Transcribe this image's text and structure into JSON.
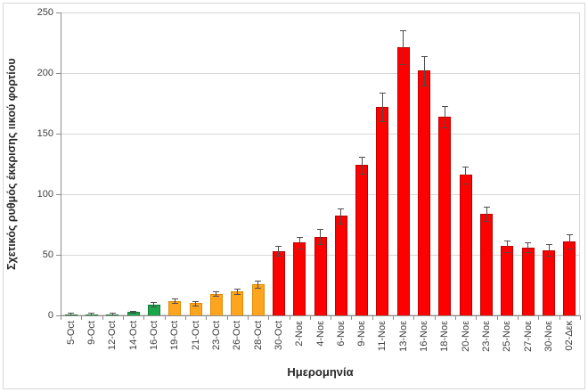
{
  "chart_data": {
    "type": "bar",
    "title": "",
    "xlabel": "Ημερομηνία",
    "ylabel": "Σχετικός ρυθμός έκκρισης ιικού φορτίου",
    "ylim": [
      0,
      250
    ],
    "ytick_step": 50,
    "grid": true,
    "legend": "none",
    "categories": [
      "5-Oct",
      "9-Oct",
      "12-Oct",
      "14-Oct",
      "16-Oct",
      "19-Oct",
      "21-Oct",
      "23-Oct",
      "26-Oct",
      "28-Oct",
      "30-Oct",
      "2-Νοε",
      "4-Νοε",
      "6-Νοε",
      "9-Νοε",
      "11-Νοε",
      "13-Νοε",
      "16-Νοε",
      "18-Νοε",
      "20-Νοε",
      "23-Νοε",
      "25-Νοε",
      "27-Νοε",
      "30-Νοε",
      "02-Δεκ"
    ],
    "values": [
      1,
      1,
      1,
      3,
      9,
      12,
      10,
      18,
      20,
      26,
      53,
      60,
      65,
      82,
      124,
      172,
      221,
      202,
      164,
      116,
      84,
      57,
      56,
      54,
      61
    ],
    "errors": [
      1,
      1,
      1,
      1,
      2,
      2,
      2,
      2,
      2,
      3,
      4,
      5,
      6,
      6,
      7,
      12,
      14,
      12,
      9,
      7,
      6,
      5,
      4,
      5,
      6
    ],
    "colors": [
      "green",
      "green",
      "green",
      "green",
      "green",
      "orange",
      "orange",
      "orange",
      "orange",
      "orange",
      "red",
      "red",
      "red",
      "red",
      "red",
      "red",
      "red",
      "red",
      "red",
      "red",
      "red",
      "red",
      "red",
      "red",
      "red"
    ],
    "palette": {
      "green": {
        "fill": "#1CA64A",
        "border": "#137A35"
      },
      "orange": {
        "fill": "#FFA41E",
        "border": "#DE8A00"
      },
      "red": {
        "fill": "#FF0000",
        "border": "#BF0000"
      }
    },
    "error_bar_color": "#4D4D4D",
    "gridline_color": "#D6D6D6",
    "axis_line_color": "#8C8C8C",
    "tick_label_color": "#3F3F3F"
  }
}
